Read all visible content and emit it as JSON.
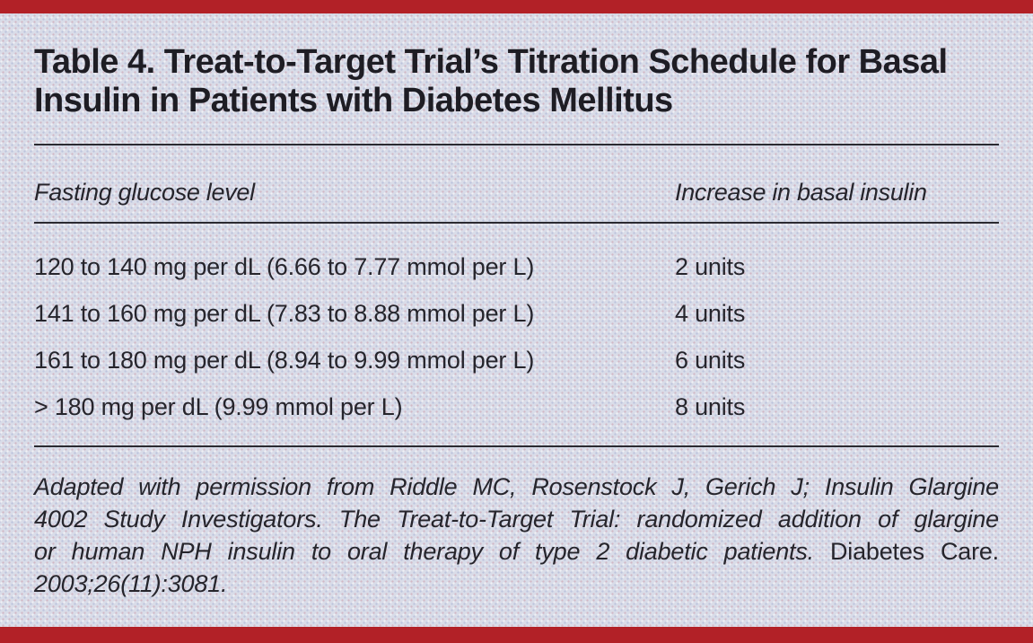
{
  "page": {
    "background_color": "#d9dce8",
    "accent_color": "#b22127",
    "rule_color": "#2b2a31",
    "text_color": "#26252c"
  },
  "table": {
    "title_lines": [
      "Table 4. Treat-to-Target Trial’s Titration Schedule for Basal",
      "Insulin in Patients with Diabetes Mellitus"
    ],
    "column_headers": {
      "glucose": "Fasting glucose level",
      "insulin": "Increase in basal insulin"
    },
    "rows": [
      {
        "glucose": "120 to 140 mg per dL (6.66 to 7.77 mmol per L)",
        "insulin": "2 units"
      },
      {
        "glucose": "141 to 160 mg per dL (7.83 to 8.88 mmol per L)",
        "insulin": "4 units"
      },
      {
        "glucose": "161 to 180 mg per dL (8.94 to 9.99 mmol per L)",
        "insulin": "6 units"
      },
      {
        "glucose": "> 180 mg per dL (9.99 mmol per L)",
        "insulin": "8 units"
      }
    ]
  },
  "footnote": {
    "line1": "Adapted with permission from Riddle MC, Rosenstock J, Gerich J; Insulin Glargine",
    "line2": "4002 Study Investigators. The Treat-to-Target Trial: randomized addition of glargine",
    "line3_italic": "or human NPH insulin to oral therapy of type 2 diabetic patients.",
    "line3_roman": "Diabetes Care.",
    "line4": "2003;26(11):3081."
  }
}
